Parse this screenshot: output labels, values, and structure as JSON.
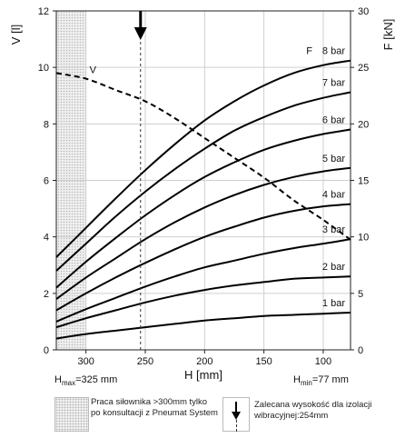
{
  "chart_data": {
    "type": "line",
    "x_axis": {
      "label": "H [mm]",
      "range": [
        325,
        77
      ],
      "reversed": true,
      "ticks": [
        300,
        250,
        200,
        150,
        100
      ]
    },
    "y_left": {
      "label": "V [l]",
      "range": [
        0,
        12
      ],
      "ticks": [
        0,
        2,
        4,
        6,
        8,
        10,
        12
      ]
    },
    "y_right": {
      "label": "F [kN]",
      "range": [
        0,
        30
      ],
      "ticks": [
        0,
        5,
        10,
        15,
        20,
        25,
        30
      ]
    },
    "grid": true,
    "series": [
      {
        "name": "V",
        "axis": "left",
        "style": "dashed",
        "x": [
          325,
          300,
          275,
          250,
          225,
          200,
          175,
          150,
          125,
          100,
          77
        ],
        "y": [
          9.8,
          9.6,
          9.2,
          8.8,
          8.2,
          7.5,
          6.8,
          6.1,
          5.3,
          4.6,
          3.9
        ]
      },
      {
        "name": "1 bar",
        "axis": "right",
        "x": [
          325,
          300,
          275,
          250,
          225,
          200,
          175,
          150,
          125,
          100,
          77
        ],
        "y": [
          1.0,
          1.4,
          1.7,
          2.0,
          2.3,
          2.6,
          2.8,
          3.0,
          3.1,
          3.2,
          3.3
        ]
      },
      {
        "name": "2 bar",
        "axis": "right",
        "x": [
          325,
          300,
          275,
          250,
          225,
          200,
          175,
          150,
          125,
          100,
          77
        ],
        "y": [
          2.0,
          2.8,
          3.5,
          4.2,
          4.8,
          5.3,
          5.7,
          6.0,
          6.3,
          6.4,
          6.5
        ]
      },
      {
        "name": "3 bar",
        "axis": "right",
        "x": [
          325,
          300,
          275,
          250,
          225,
          200,
          175,
          150,
          125,
          100,
          77
        ],
        "y": [
          2.5,
          3.6,
          4.6,
          5.6,
          6.5,
          7.3,
          7.9,
          8.5,
          9.0,
          9.4,
          9.8
        ]
      },
      {
        "name": "4 bar",
        "axis": "right",
        "x": [
          325,
          300,
          275,
          250,
          225,
          200,
          175,
          150,
          125,
          100,
          77
        ],
        "y": [
          3.5,
          5.0,
          6.4,
          7.7,
          8.9,
          10.0,
          10.9,
          11.7,
          12.3,
          12.7,
          12.9
        ]
      },
      {
        "name": "5 bar",
        "axis": "right",
        "x": [
          325,
          300,
          275,
          250,
          225,
          200,
          175,
          150,
          125,
          100,
          77
        ],
        "y": [
          4.5,
          6.4,
          8.1,
          9.8,
          11.3,
          12.6,
          13.7,
          14.6,
          15.3,
          15.8,
          16.1
        ]
      },
      {
        "name": "6 bar",
        "axis": "right",
        "x": [
          325,
          300,
          275,
          250,
          225,
          200,
          175,
          150,
          125,
          100,
          77
        ],
        "y": [
          5.5,
          7.8,
          9.9,
          11.9,
          13.7,
          15.3,
          16.6,
          17.7,
          18.5,
          19.1,
          19.5
        ]
      },
      {
        "name": "7 bar",
        "axis": "right",
        "x": [
          325,
          300,
          275,
          250,
          225,
          200,
          175,
          150,
          125,
          100,
          77
        ],
        "y": [
          7.0,
          9.4,
          11.8,
          14.0,
          16.0,
          17.8,
          19.4,
          20.6,
          21.6,
          22.3,
          22.8
        ]
      },
      {
        "name": "8 bar",
        "axis": "right",
        "x": [
          325,
          300,
          275,
          250,
          225,
          200,
          175,
          150,
          125,
          100,
          77
        ],
        "y": [
          8.2,
          10.8,
          13.4,
          15.9,
          18.2,
          20.3,
          22.0,
          23.4,
          24.5,
          25.2,
          25.6
        ]
      }
    ],
    "top_marker": "F",
    "recommended_height_mm": 254,
    "hatched_region_mm": [
      325,
      300
    ],
    "h_max": {
      "label": "H",
      "sub": "max",
      "value": "=325 mm"
    },
    "h_min": {
      "label": "H",
      "sub": "min",
      "value": "=77 mm"
    }
  },
  "legend": {
    "hatch_text": "Praca siłownika >300mm tylko po konsultacji z Pneumat System",
    "arrow_text": "Zalecana wysokość dla izolacji wibracyjnej:254mm"
  }
}
